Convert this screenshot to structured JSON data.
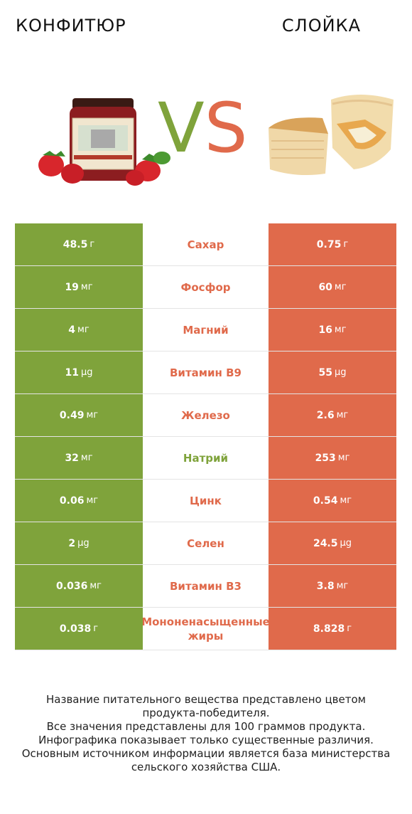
{
  "header": {
    "left_title": "конфитюр",
    "right_title": "слойка"
  },
  "vs": {
    "v": "V",
    "s": "S"
  },
  "colors": {
    "left_accent": "#7fa33b",
    "right_accent": "#e06a4b"
  },
  "rows": [
    {
      "left_value": "48.5",
      "left_unit": "г",
      "nutrient": "Сахар",
      "winner": "right",
      "right_value": "0.75",
      "right_unit": "г"
    },
    {
      "left_value": "19",
      "left_unit": "мг",
      "nutrient": "Фосфор",
      "winner": "right",
      "right_value": "60",
      "right_unit": "мг"
    },
    {
      "left_value": "4",
      "left_unit": "мг",
      "nutrient": "Магний",
      "winner": "right",
      "right_value": "16",
      "right_unit": "мг"
    },
    {
      "left_value": "11",
      "left_unit": "µg",
      "nutrient": "Витамин B9",
      "winner": "right",
      "right_value": "55",
      "right_unit": "µg"
    },
    {
      "left_value": "0.49",
      "left_unit": "мг",
      "nutrient": "Железо",
      "winner": "right",
      "right_value": "2.6",
      "right_unit": "мг"
    },
    {
      "left_value": "32",
      "left_unit": "мг",
      "nutrient": "Натрий",
      "winner": "left",
      "right_value": "253",
      "right_unit": "мг"
    },
    {
      "left_value": "0.06",
      "left_unit": "мг",
      "nutrient": "Цинк",
      "winner": "right",
      "right_value": "0.54",
      "right_unit": "мг"
    },
    {
      "left_value": "2",
      "left_unit": "µg",
      "nutrient": "Селен",
      "winner": "right",
      "right_value": "24.5",
      "right_unit": "µg"
    },
    {
      "left_value": "0.036",
      "left_unit": "мг",
      "nutrient": "Витамин B3",
      "winner": "right",
      "right_value": "3.8",
      "right_unit": "мг"
    },
    {
      "left_value": "0.038",
      "left_unit": "г",
      "nutrient": "Мононенасыщенные жиры",
      "winner": "right",
      "right_value": "8.828",
      "right_unit": "г"
    }
  ],
  "footer": {
    "line1": "Название питательного вещества представлено цветом",
    "line2": "продукта-победителя.",
    "line3": "Все значения представлены для 100 граммов продукта.",
    "line4": "Инфографика показывает только существенные различия.",
    "line5": "Основным источником информации является база министерства",
    "line6": "сельского хозяйства США."
  }
}
